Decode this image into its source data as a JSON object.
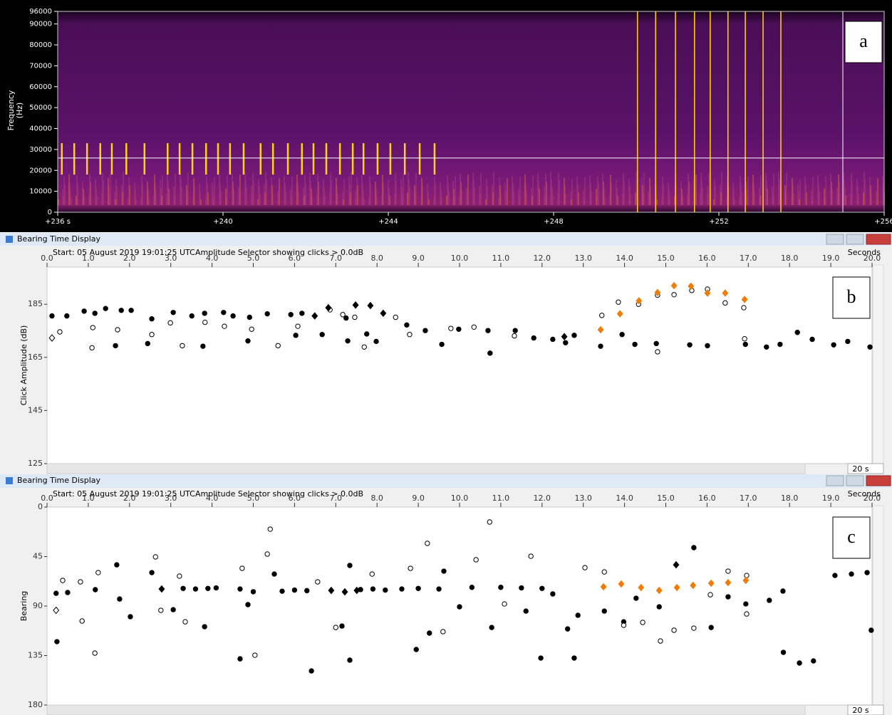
{
  "chart_data": [
    {
      "type": "spectrogram",
      "panel_label": "a",
      "ylabel": [
        "Frequency",
        "(Hz)"
      ],
      "xlim": [
        236,
        256
      ],
      "ylim": [
        0,
        96000
      ],
      "xticks": [
        {
          "value": 236,
          "label": "+236 s"
        },
        {
          "value": 240,
          "label": "+240"
        },
        {
          "value": 244,
          "label": "+244"
        },
        {
          "value": 248,
          "label": "+248"
        },
        {
          "value": 252,
          "label": "+252"
        },
        {
          "value": 256,
          "label": "+256"
        }
      ],
      "yticks": [
        0,
        10000,
        20000,
        30000,
        40000,
        50000,
        60000,
        70000,
        80000,
        90000,
        96000
      ],
      "clicks": {
        "x": [
          236.1,
          236.4,
          236.71,
          237.03,
          237.31,
          237.66,
          238.1,
          238.66,
          238.95,
          239.26,
          239.59,
          239.88,
          240.17,
          240.5,
          240.91,
          241.21,
          241.57,
          241.91,
          242.19,
          242.5,
          242.83,
          243.14,
          243.4,
          243.74,
          244.05,
          244.4,
          244.76,
          245.12
        ],
        "band": [
          18000,
          33000
        ],
        "color": "#ffd21e"
      },
      "events": {
        "x": [
          250.03,
          250.47,
          250.95,
          251.41,
          251.79,
          252.22,
          252.64,
          253.07,
          253.5
        ],
        "color": "#ffc814"
      },
      "cursor": {
        "x": 255.0,
        "y": 25900
      }
    },
    {
      "type": "scatter",
      "title": "Bearing Time Display",
      "subtitle": "Start: 05 August 2019 19:01:25 UTC",
      "annotation": "Amplitude Selector showing clicks > 0.0dB",
      "xlabel": "Seconds",
      "ylabel": "Click Amplitude (dB)",
      "span_label": "20 s",
      "panel_label": "b",
      "xlim": [
        0,
        20
      ],
      "ylim": [
        125,
        199
      ],
      "xticks": [
        {
          "value": 0,
          "label": "0.0"
        },
        {
          "value": 1,
          "label": "1.0"
        },
        {
          "value": 2,
          "label": "2.0"
        },
        {
          "value": 3,
          "label": "3.0"
        },
        {
          "value": 4,
          "label": "4.0"
        },
        {
          "value": 5,
          "label": "5.0"
        },
        {
          "value": 6,
          "label": "6.0"
        },
        {
          "value": 7,
          "label": "7.0"
        },
        {
          "value": 8,
          "label": "8.0"
        },
        {
          "value": 9,
          "label": "9.0"
        },
        {
          "value": 10,
          "label": "10.0"
        },
        {
          "value": 11,
          "label": "11.0"
        },
        {
          "value": 12,
          "label": "12.0"
        },
        {
          "value": 13,
          "label": "13.0"
        },
        {
          "value": 14,
          "label": "14.0"
        },
        {
          "value": 15,
          "label": "15.0"
        },
        {
          "value": 16,
          "label": "16.0"
        },
        {
          "value": 17,
          "label": "17.0"
        },
        {
          "value": 18,
          "label": "18.0"
        },
        {
          "value": 19,
          "label": "19.0"
        },
        {
          "value": 20,
          "label": "20.0"
        }
      ],
      "yticks": [
        125,
        145,
        165,
        185
      ],
      "series": [
        {
          "marker": "circle",
          "color": "#000000",
          "x": [
            0.12,
            0.48,
            0.9,
            1.16,
            1.42,
            1.8,
            2.04,
            1.66,
            2.44,
            2.54,
            3.06,
            3.51,
            3.82,
            4.28,
            4.51,
            4.91,
            3.78,
            4.87,
            5.34,
            5.91,
            6.18,
            6.03,
            6.67,
            7.29,
            7.25,
            7.75,
            7.98,
            8.72,
            9.17,
            9.57,
            9.98,
            10.74,
            10.69,
            11.35,
            11.8,
            12.26,
            12.57,
            12.78,
            13.42,
            13.94,
            14.25,
            14.77,
            15.58,
            16.01,
            16.93,
            17.44,
            17.77,
            18.19,
            18.55,
            19.07,
            19.41,
            19.95
          ],
          "values": [
            180.6,
            180.6,
            182.4,
            181.6,
            183.4,
            182.7,
            182.7,
            169.4,
            170.2,
            179.5,
            181.9,
            180.6,
            181.6,
            181.9,
            180.6,
            180.1,
            169.2,
            171.2,
            181.4,
            181.1,
            181.6,
            173.3,
            173.6,
            171.2,
            179.8,
            173.8,
            171.0,
            177.2,
            175.1,
            169.9,
            175.6,
            166.6,
            175.1,
            175.1,
            172.3,
            171.8,
            170.5,
            173.3,
            169.2,
            173.6,
            169.9,
            170.2,
            169.7,
            169.4,
            169.9,
            168.9,
            169.9,
            174.4,
            171.8,
            169.7,
            171.0,
            168.9
          ]
        },
        {
          "marker": "open-circle",
          "color": "#000000",
          "x": [
            0.31,
            1.11,
            1.09,
            1.71,
            2.54,
            2.99,
            3.28,
            3.83,
            4.3,
            4.96,
            5.6,
            6.08,
            6.86,
            7.17,
            7.46,
            7.69,
            8.45,
            8.79,
            9.79,
            10.35,
            11.33,
            13.45,
            13.85,
            14.34,
            14.8,
            15.2,
            15.63,
            16.01,
            16.44,
            16.89,
            16.91,
            14.8
          ],
          "values": [
            174.6,
            176.2,
            168.6,
            175.4,
            173.6,
            178.0,
            169.4,
            178.2,
            176.7,
            175.6,
            169.4,
            176.7,
            182.9,
            181.1,
            180.1,
            168.9,
            180.1,
            173.6,
            175.9,
            176.4,
            173.1,
            180.8,
            185.8,
            185.0,
            188.4,
            188.6,
            190.2,
            190.7,
            185.5,
            183.7,
            172.0,
            167.1
          ]
        },
        {
          "marker": "diamond",
          "color": "#000000",
          "x": [
            6.82,
            7.48,
            7.84,
            8.15,
            6.49,
            12.54
          ],
          "values": [
            183.7,
            184.7,
            184.5,
            181.6,
            180.6,
            172.8
          ]
        },
        {
          "marker": "open-diamond",
          "color": "#000000",
          "x": [
            0.12
          ],
          "values": [
            172.3
          ]
        },
        {
          "marker": "diamond",
          "color": "#f07d0a",
          "x": [
            13.42,
            13.89,
            14.35,
            14.8,
            15.2,
            15.61,
            16.01,
            16.44,
            16.91
          ],
          "values": [
            175.4,
            181.4,
            186.3,
            189.4,
            192.0,
            191.8,
            189.2,
            189.2,
            186.8
          ]
        }
      ]
    },
    {
      "type": "scatter",
      "title": "Bearing Time Display",
      "subtitle": "Start: 05 August 2019 19:01:25 UTC",
      "annotation": "Amplitude Selector showing clicks > 0.0dB",
      "xlabel": "Seconds",
      "ylabel": "Bearing",
      "span_label": "20 s",
      "panel_label": "c",
      "xlim": [
        0,
        20
      ],
      "ylim": [
        180,
        0
      ],
      "xticks": [
        {
          "value": 0,
          "label": "0.0"
        },
        {
          "value": 1,
          "label": "1.0"
        },
        {
          "value": 2,
          "label": "2.0"
        },
        {
          "value": 3,
          "label": "3.0"
        },
        {
          "value": 4,
          "label": "4.0"
        },
        {
          "value": 5,
          "label": "5.0"
        },
        {
          "value": 6,
          "label": "6.0"
        },
        {
          "value": 7,
          "label": "7.0"
        },
        {
          "value": 8,
          "label": "8.0"
        },
        {
          "value": 9,
          "label": "9.0"
        },
        {
          "value": 10,
          "label": "10.0"
        },
        {
          "value": 11,
          "label": "11.0"
        },
        {
          "value": 12,
          "label": "12.0"
        },
        {
          "value": 13,
          "label": "13.0"
        },
        {
          "value": 14,
          "label": "14.0"
        },
        {
          "value": 15,
          "label": "15.0"
        },
        {
          "value": 16,
          "label": "16.0"
        },
        {
          "value": 17,
          "label": "17.0"
        },
        {
          "value": 18,
          "label": "18.0"
        },
        {
          "value": 19,
          "label": "19.0"
        },
        {
          "value": 20,
          "label": "20.0"
        }
      ],
      "yticks": [
        0,
        45,
        90,
        135,
        180
      ],
      "series": [
        {
          "marker": "circle",
          "color": "#000000",
          "x": [
            0.22,
            0.24,
            0.5,
            1.17,
            1.69,
            1.76,
            2.02,
            2.54,
            3.06,
            3.82,
            4.68,
            4.68,
            4.87,
            5.51,
            6.41,
            7.15,
            7.34,
            7.34,
            8.95,
            9.27,
            9.62,
            10.0,
            10.78,
            11.61,
            11.97,
            12.26,
            12.62,
            12.78,
            12.87,
            13.51,
            13.98,
            14.28,
            14.84,
            15.68,
            16.1,
            16.51,
            16.94,
            17.51,
            17.84,
            17.85,
            18.24,
            18.58,
            19.1,
            19.5,
            19.88,
            19.98,
            3.3,
            3.6,
            3.9,
            4.1,
            5.0,
            5.7,
            6.0,
            6.3,
            7.6,
            7.9,
            8.2,
            8.6,
            9.0,
            9.5,
            10.3,
            11.0,
            11.5,
            12.0
          ],
          "values": [
            78.4,
            122.4,
            77.7,
            75.1,
            52.5,
            83.6,
            99.7,
            59.6,
            93.3,
            108.8,
            74.5,
            138.0,
            88.7,
            60.9,
            149.0,
            108.2,
            139.2,
            53.1,
            129.5,
            114.6,
            58.3,
            90.7,
            109.5,
            94.6,
            137.3,
            79.0,
            110.8,
            137.3,
            98.4,
            94.6,
            104.3,
            82.9,
            90.7,
            36.9,
            109.5,
            81.6,
            88.1,
            84.8,
            76.4,
            132.1,
            141.8,
            139.9,
            62.2,
            60.9,
            59.6,
            112.0,
            74.0,
            74.5,
            74.0,
            73.5,
            77.0,
            76.5,
            75.5,
            76.0,
            75.0,
            74.5,
            75.5,
            74.5,
            74.0,
            74.5,
            73.0,
            73.0,
            73.5,
            74.0
          ]
        },
        {
          "marker": "open-circle",
          "color": "#000000",
          "x": [
            0.38,
            0.81,
            0.85,
            1.16,
            1.24,
            2.63,
            2.76,
            3.21,
            3.35,
            4.73,
            5.04,
            5.34,
            5.41,
            6.56,
            7.0,
            7.88,
            8.81,
            9.22,
            9.6,
            10.4,
            10.73,
            11.09,
            11.73,
            13.04,
            13.51,
            13.98,
            14.44,
            14.87,
            15.2,
            15.68,
            16.08,
            16.51,
            16.96,
            16.96
          ],
          "values": [
            66.7,
            68.0,
            103.6,
            132.8,
            59.6,
            45.3,
            93.9,
            62.8,
            104.3,
            55.7,
            134.7,
            42.7,
            20.1,
            68.0,
            109.5,
            60.9,
            55.7,
            33.0,
            113.3,
            47.9,
            13.6,
            88.1,
            44.7,
            55.1,
            59.0,
            107.5,
            104.9,
            121.8,
            112.0,
            110.1,
            79.7,
            58.3,
            97.2,
            62.2
          ]
        },
        {
          "marker": "diamond",
          "color": "#000000",
          "x": [
            2.78,
            6.89,
            7.22,
            7.51,
            15.25
          ],
          "values": [
            74.5,
            75.8,
            77.1,
            75.8,
            52.5
          ]
        },
        {
          "marker": "open-diamond",
          "color": "#000000",
          "x": [
            0.22
          ],
          "values": [
            93.9
          ]
        },
        {
          "marker": "diamond",
          "color": "#f07d0a",
          "x": [
            13.49,
            13.92,
            14.4,
            14.84,
            15.27,
            15.66,
            16.1,
            16.51,
            16.94
          ],
          "values": [
            72.5,
            69.9,
            73.2,
            75.8,
            73.2,
            71.2,
            69.3,
            68.7,
            66.7
          ]
        }
      ]
    }
  ]
}
